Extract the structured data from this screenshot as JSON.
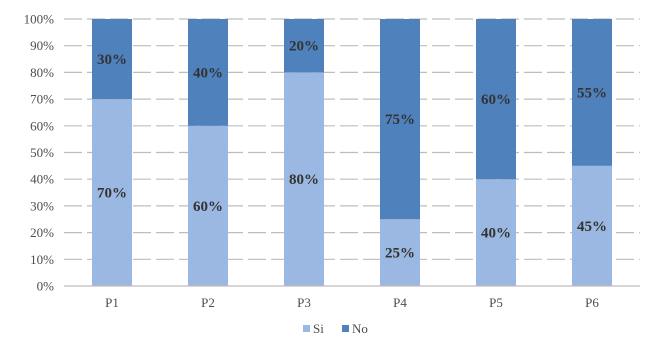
{
  "chart_data": {
    "type": "bar",
    "stacked": true,
    "percent_stacked": true,
    "categories": [
      "P1",
      "P2",
      "P3",
      "P4",
      "P5",
      "P6"
    ],
    "series": [
      {
        "name": "Si",
        "values": [
          70,
          60,
          80,
          25,
          40,
          45
        ],
        "labels": [
          "70%",
          "60%",
          "80%",
          "25%",
          "40%",
          "45%"
        ],
        "color": "#9ab8e1"
      },
      {
        "name": "No",
        "values": [
          30,
          40,
          20,
          75,
          60,
          55
        ],
        "labels": [
          "30%",
          "40%",
          "20%",
          "75%",
          "60%",
          "55%"
        ],
        "color": "#4f81bd"
      }
    ],
    "yticks": [
      0,
      10,
      20,
      30,
      40,
      50,
      60,
      70,
      80,
      90,
      100
    ],
    "ytick_labels": [
      "0%",
      "10%",
      "20%",
      "30%",
      "40%",
      "50%",
      "60%",
      "70%",
      "80%",
      "90%",
      "100%"
    ],
    "ylim": [
      0,
      100
    ],
    "grid": true,
    "grid_style": "dashed",
    "legend_position": "bottom-center",
    "title": "",
    "xlabel": "",
    "ylabel": ""
  }
}
